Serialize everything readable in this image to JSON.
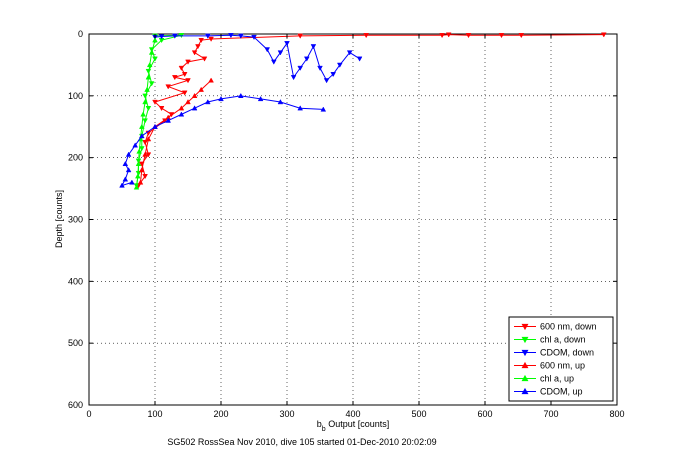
{
  "figure": {
    "caption": "SG502 RossSea Nov 2010, dive 105 started 01-Dec-2010 20:02:09"
  },
  "chart_data": {
    "type": "scatter",
    "title": "",
    "xlabel_main": "b",
    "xlabel_sub": "b",
    "xlabel_rest": " Output [counts]",
    "ylabel": "Depth [counts]",
    "xlim": [
      0,
      800
    ],
    "ylim": [
      0,
      600
    ],
    "y_reversed": true,
    "grid": true,
    "legend_position": "bottom-right",
    "x_ticks": [
      0,
      100,
      200,
      300,
      400,
      500,
      600,
      700,
      800
    ],
    "y_ticks": [
      0,
      100,
      200,
      300,
      400,
      500,
      600
    ],
    "series": [
      {
        "name": "600 nm, down",
        "color": "#ff0000",
        "marker": "triangle-down",
        "points": [
          [
            780,
            1
          ],
          [
            655,
            2
          ],
          [
            625,
            2
          ],
          [
            575,
            2
          ],
          [
            545,
            1
          ],
          [
            535,
            2
          ],
          [
            420,
            2
          ],
          [
            320,
            3
          ],
          [
            185,
            8
          ],
          [
            170,
            10
          ],
          [
            165,
            20
          ],
          [
            160,
            30
          ],
          [
            175,
            40
          ],
          [
            150,
            45
          ],
          [
            140,
            55
          ],
          [
            145,
            65
          ],
          [
            130,
            70
          ],
          [
            150,
            75
          ],
          [
            120,
            85
          ],
          [
            145,
            95
          ],
          [
            100,
            110
          ],
          [
            110,
            120
          ],
          [
            125,
            130
          ],
          [
            115,
            140
          ],
          [
            90,
            160
          ],
          [
            85,
            175
          ],
          [
            90,
            195
          ],
          [
            80,
            210
          ],
          [
            85,
            230
          ],
          [
            75,
            245
          ]
        ]
      },
      {
        "name": "chl a, down",
        "color": "#00ff00",
        "marker": "triangle-down",
        "points": [
          [
            100,
            3
          ],
          [
            140,
            2
          ],
          [
            110,
            10
          ],
          [
            95,
            25
          ],
          [
            100,
            40
          ],
          [
            90,
            60
          ],
          [
            95,
            80
          ],
          [
            85,
            100
          ],
          [
            90,
            120
          ],
          [
            85,
            140
          ],
          [
            80,
            165
          ],
          [
            80,
            185
          ],
          [
            75,
            205
          ],
          [
            75,
            225
          ],
          [
            72,
            245
          ]
        ]
      },
      {
        "name": "CDOM, down",
        "color": "#0000ff",
        "marker": "triangle-down",
        "points": [
          [
            410,
            40
          ],
          [
            395,
            30
          ],
          [
            380,
            50
          ],
          [
            370,
            65
          ],
          [
            360,
            75
          ],
          [
            350,
            55
          ],
          [
            340,
            20
          ],
          [
            330,
            40
          ],
          [
            320,
            55
          ],
          [
            310,
            70
          ],
          [
            300,
            15
          ],
          [
            290,
            30
          ],
          [
            280,
            45
          ],
          [
            270,
            25
          ],
          [
            250,
            5
          ],
          [
            230,
            3
          ],
          [
            215,
            2
          ],
          [
            180,
            3
          ],
          [
            130,
            3
          ],
          [
            110,
            4
          ],
          [
            100,
            5
          ]
        ]
      },
      {
        "name": "600 nm, up",
        "color": "#ff0000",
        "marker": "triangle-up",
        "points": [
          [
            185,
            75
          ],
          [
            170,
            90
          ],
          [
            160,
            100
          ],
          [
            150,
            110
          ],
          [
            140,
            120
          ],
          [
            120,
            135
          ],
          [
            100,
            150
          ],
          [
            90,
            170
          ],
          [
            85,
            195
          ],
          [
            80,
            220
          ],
          [
            78,
            240
          ]
        ]
      },
      {
        "name": "chl a, up",
        "color": "#00ff00",
        "marker": "triangle-up",
        "points": [
          [
            100,
            10
          ],
          [
            95,
            30
          ],
          [
            92,
            50
          ],
          [
            90,
            70
          ],
          [
            88,
            90
          ],
          [
            85,
            110
          ],
          [
            82,
            130
          ],
          [
            80,
            150
          ],
          [
            78,
            170
          ],
          [
            76,
            190
          ],
          [
            75,
            210
          ],
          [
            74,
            230
          ],
          [
            72,
            248
          ]
        ]
      },
      {
        "name": "CDOM, up",
        "color": "#0000ff",
        "marker": "triangle-up",
        "points": [
          [
            355,
            122
          ],
          [
            320,
            120
          ],
          [
            290,
            110
          ],
          [
            260,
            105
          ],
          [
            230,
            100
          ],
          [
            200,
            105
          ],
          [
            180,
            110
          ],
          [
            160,
            120
          ],
          [
            140,
            130
          ],
          [
            120,
            140
          ],
          [
            100,
            150
          ],
          [
            80,
            165
          ],
          [
            70,
            180
          ],
          [
            60,
            195
          ],
          [
            55,
            210
          ],
          [
            60,
            220
          ],
          [
            55,
            235
          ],
          [
            50,
            245
          ],
          [
            65,
            240
          ]
        ]
      }
    ]
  }
}
